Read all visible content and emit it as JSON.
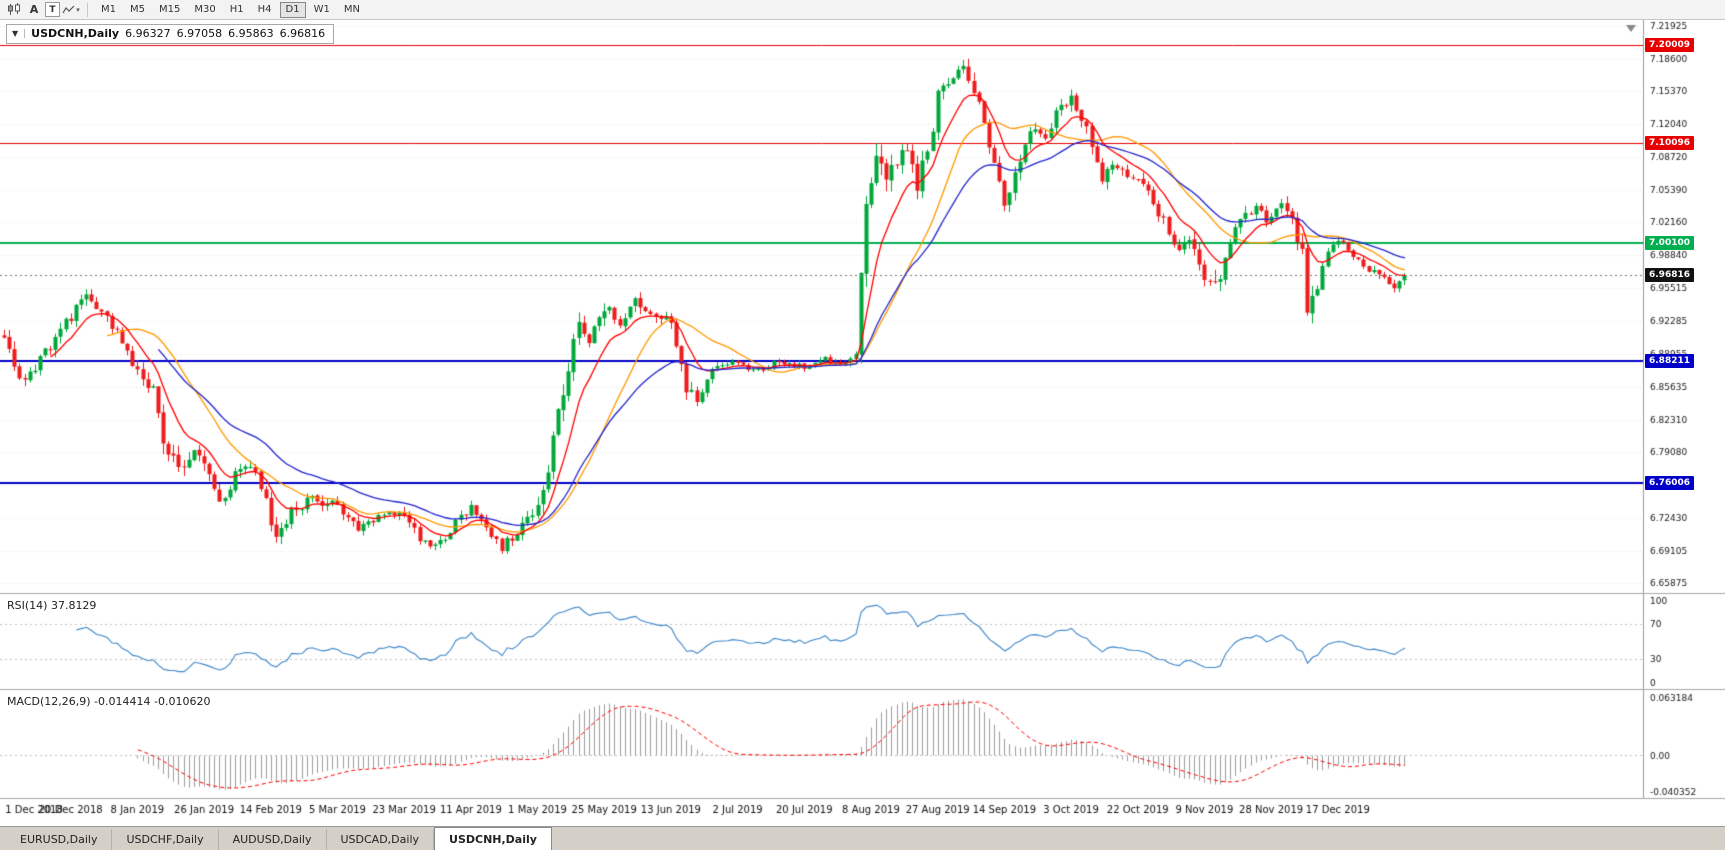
{
  "icons": {
    "collapse_arrow": "▼",
    "tool_caret": "▾"
  },
  "toolbar": {
    "icon_buttons": [
      {
        "name": "candlestick-chart"
      },
      {
        "name": "font-tool",
        "label": "A"
      },
      {
        "name": "text-tool",
        "label": "T"
      },
      {
        "name": "line-style-tool"
      }
    ],
    "timeframes": [
      {
        "label": "M1",
        "active": false
      },
      {
        "label": "M5",
        "active": false
      },
      {
        "label": "M15",
        "active": false
      },
      {
        "label": "M30",
        "active": false
      },
      {
        "label": "H1",
        "active": false
      },
      {
        "label": "H4",
        "active": false
      },
      {
        "label": "D1",
        "active": true
      },
      {
        "label": "W1",
        "active": false
      },
      {
        "label": "MN",
        "active": false
      }
    ]
  },
  "chart": {
    "symbol": "USDCNH,Daily",
    "ohlc": {
      "open": "6.96327",
      "high": "6.97058",
      "low": "6.95863",
      "close": "6.96816"
    }
  },
  "chart_data": {
    "type": "candlestick",
    "title": "USDCNH Daily",
    "n_candles": 274,
    "x_label_step": 13,
    "x_labels": [
      "1 Dec 2018",
      "20 Dec 2018",
      "8 Jan 2019",
      "26 Jan 2019",
      "14 Feb 2019",
      "5 Mar 2019",
      "23 Mar 2019",
      "11 Apr 2019",
      "1 May 2019",
      "25 May 2019",
      "13 Jun 2019",
      "2 Jul 2019",
      "20 Jul 2019",
      "8 Aug 2019",
      "27 Aug 2019",
      "14 Sep 2019",
      "3 Oct 2019",
      "22 Oct 2019",
      "9 Nov 2019",
      "28 Nov 2019",
      "17 Dec 2019"
    ],
    "y_ticks": [
      "7.21925",
      "7.18600",
      "7.15370",
      "7.12040",
      "7.08720",
      "7.05390",
      "7.02160",
      "6.98840",
      "6.95515",
      "6.92285",
      "6.88955",
      "6.85635",
      "6.82310",
      "6.79080",
      "6.75750",
      "6.72430",
      "6.69105",
      "6.65875"
    ],
    "y_range": {
      "min": 6.65,
      "max": 7.225
    },
    "up_color": "#00a83a",
    "down_color": "#ee1c1c",
    "price_anchors": [
      [
        0,
        6.905,
        0.016
      ],
      [
        4,
        6.858,
        0.016
      ],
      [
        8,
        6.89,
        0.015
      ],
      [
        13,
        6.925,
        0.015
      ],
      [
        16,
        6.951,
        0.014
      ],
      [
        20,
        6.93,
        0.014
      ],
      [
        24,
        6.89,
        0.014
      ],
      [
        26,
        6.87,
        0.014
      ],
      [
        29,
        6.855,
        0.016
      ],
      [
        31,
        6.8,
        0.02
      ],
      [
        34,
        6.772,
        0.018
      ],
      [
        37,
        6.79,
        0.014
      ],
      [
        39,
        6.78,
        0.014
      ],
      [
        42,
        6.735,
        0.016
      ],
      [
        45,
        6.768,
        0.013
      ],
      [
        48,
        6.776,
        0.012
      ],
      [
        51,
        6.745,
        0.013
      ],
      [
        53,
        6.702,
        0.018
      ],
      [
        56,
        6.73,
        0.012
      ],
      [
        60,
        6.746,
        0.011
      ],
      [
        65,
        6.735,
        0.011
      ],
      [
        69,
        6.71,
        0.011
      ],
      [
        73,
        6.726,
        0.01
      ],
      [
        78,
        6.73,
        0.01
      ],
      [
        81,
        6.705,
        0.011
      ],
      [
        84,
        6.693,
        0.012
      ],
      [
        88,
        6.72,
        0.011
      ],
      [
        91,
        6.733,
        0.011
      ],
      [
        94,
        6.712,
        0.011
      ],
      [
        97,
        6.695,
        0.012
      ],
      [
        100,
        6.71,
        0.011
      ],
      [
        103,
        6.731,
        0.012
      ],
      [
        104,
        6.738,
        0.016
      ],
      [
        106,
        6.777,
        0.02
      ],
      [
        108,
        6.83,
        0.022
      ],
      [
        110,
        6.878,
        0.022
      ],
      [
        112,
        6.916,
        0.02
      ],
      [
        114,
        6.9,
        0.016
      ],
      [
        117,
        6.936,
        0.015
      ],
      [
        120,
        6.921,
        0.014
      ],
      [
        123,
        6.946,
        0.014
      ],
      [
        126,
        6.931,
        0.013
      ],
      [
        130,
        6.924,
        0.013
      ],
      [
        133,
        6.856,
        0.016
      ],
      [
        135,
        6.845,
        0.014
      ],
      [
        138,
        6.871,
        0.01
      ],
      [
        141,
        6.881,
        0.008
      ],
      [
        143,
        6.878,
        0.007
      ],
      [
        147,
        6.873,
        0.007
      ],
      [
        151,
        6.882,
        0.007
      ],
      [
        156,
        6.877,
        0.007
      ],
      [
        160,
        6.884,
        0.007
      ],
      [
        164,
        6.879,
        0.007
      ],
      [
        166,
        6.888,
        0.01
      ],
      [
        168,
        7.042,
        0.03
      ],
      [
        170,
        7.09,
        0.026
      ],
      [
        172,
        7.061,
        0.022
      ],
      [
        174,
        7.086,
        0.02
      ],
      [
        176,
        7.1,
        0.02
      ],
      [
        178,
        7.062,
        0.02
      ],
      [
        180,
        7.091,
        0.018
      ],
      [
        182,
        7.146,
        0.018
      ],
      [
        184,
        7.162,
        0.016
      ],
      [
        187,
        7.179,
        0.012
      ],
      [
        189,
        7.156,
        0.018
      ],
      [
        191,
        7.121,
        0.018
      ],
      [
        193,
        7.076,
        0.018
      ],
      [
        195,
        7.041,
        0.018
      ],
      [
        197,
        7.071,
        0.016
      ],
      [
        199,
        7.096,
        0.014
      ],
      [
        201,
        7.12,
        0.013
      ],
      [
        203,
        7.106,
        0.013
      ],
      [
        205,
        7.131,
        0.013
      ],
      [
        208,
        7.149,
        0.013
      ],
      [
        210,
        7.126,
        0.014
      ],
      [
        212,
        7.1,
        0.014
      ],
      [
        214,
        7.066,
        0.015
      ],
      [
        216,
        7.081,
        0.013
      ],
      [
        218,
        7.071,
        0.012
      ],
      [
        221,
        7.066,
        0.012
      ],
      [
        224,
        7.041,
        0.013
      ],
      [
        227,
        7.011,
        0.013
      ],
      [
        229,
        6.991,
        0.014
      ],
      [
        231,
        7.006,
        0.013
      ],
      [
        233,
        6.976,
        0.014
      ],
      [
        236,
        6.956,
        0.022
      ],
      [
        238,
        6.986,
        0.014
      ],
      [
        240,
        7.011,
        0.013
      ],
      [
        242,
        7.031,
        0.013
      ],
      [
        244,
        7.041,
        0.014
      ],
      [
        246,
        7.026,
        0.012
      ],
      [
        249,
        7.041,
        0.012
      ],
      [
        251,
        7.026,
        0.014
      ],
      [
        253,
        6.991,
        0.018
      ],
      [
        254,
        6.928,
        0.034
      ],
      [
        256,
        6.962,
        0.018
      ],
      [
        258,
        6.996,
        0.013
      ],
      [
        260,
        7.002,
        0.011
      ],
      [
        263,
        6.986,
        0.01
      ],
      [
        266,
        6.976,
        0.01
      ],
      [
        269,
        6.962,
        0.01
      ],
      [
        271,
        6.957,
        0.01
      ],
      [
        273,
        6.968,
        0.008
      ]
    ],
    "last_candle": {
      "open": 6.96327,
      "high": 6.97058,
      "low": 6.95863,
      "close": 6.96816
    },
    "moving_averages": [
      {
        "kind": "sma",
        "period": 20,
        "color": "#ff9900"
      },
      {
        "kind": "ema",
        "period": 9,
        "color": "#ff0000"
      },
      {
        "kind": "ema",
        "period": 30,
        "color": "#2525cf"
      }
    ],
    "horizontal_lines": [
      {
        "value": 7.20009,
        "label": "7.20009",
        "color": "#e60000",
        "width": 1
      },
      {
        "value": 7.10096,
        "label": "7.10096",
        "color": "#e60000",
        "width": 1
      },
      {
        "value": 7.001,
        "label": "7.00100",
        "color": "#00b050",
        "width": 2
      },
      {
        "value": 6.88211,
        "label": "6.88211",
        "color": "#0000c8",
        "width": 2
      },
      {
        "value": 6.76006,
        "label": "6.76006",
        "color": "#0000c8",
        "width": 2
      }
    ],
    "current_price": {
      "value": 6.96816,
      "label": "6.96816",
      "color": "#111111"
    },
    "rsi": {
      "label": "RSI(14) 37.8129",
      "period": 14,
      "last": "37.8129",
      "range": [
        0,
        100
      ],
      "levels": [
        30,
        70
      ],
      "axis": [
        "100",
        "70",
        "30",
        "0"
      ],
      "color": "#3f87c9"
    },
    "macd": {
      "label": "MACD(12,26,9) -0.014414 -0.010620",
      "fast": 12,
      "slow": 26,
      "signal": 9,
      "last_macd": "-0.014414",
      "last_signal": "-0.010620",
      "range": [
        -0.040352,
        0.063184
      ],
      "axis": [
        "0.063184",
        "0.00",
        "-0.040352"
      ],
      "histogram_color": "#9e9e9e",
      "signal_color": "#ff0000"
    }
  },
  "tabs": [
    {
      "label": "EURUSD,Daily",
      "active": false
    },
    {
      "label": "USDCHF,Daily",
      "active": false
    },
    {
      "label": "AUDUSD,Daily",
      "active": false
    },
    {
      "label": "USDCAD,Daily",
      "active": false
    },
    {
      "label": "USDCNH,Daily",
      "active": true
    }
  ]
}
